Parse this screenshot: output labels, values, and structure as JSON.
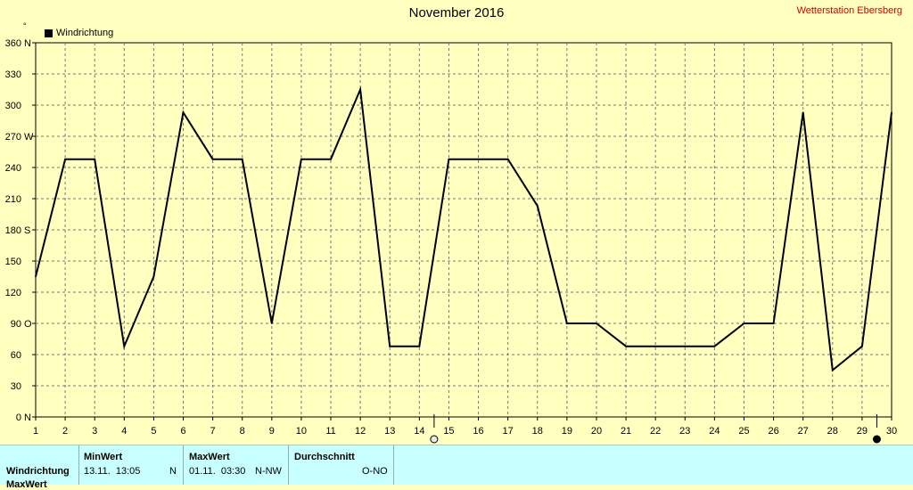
{
  "header": {
    "title": "November 2016",
    "station": "Wetterstation Ebersberg",
    "unit_mark": "°"
  },
  "legend": {
    "label": "Windrichtung"
  },
  "chart_data": {
    "type": "line",
    "title": "November 2016",
    "x_ticks": [
      "1",
      "2",
      "3",
      "4",
      "5",
      "6",
      "7",
      "8",
      "9",
      "10",
      "11",
      "12",
      "13",
      "14",
      "15",
      "16",
      "17",
      "18",
      "19",
      "20",
      "21",
      "22",
      "23",
      "24",
      "25",
      "26",
      "27",
      "28",
      "29",
      "30"
    ],
    "xlim": [
      1,
      30
    ],
    "ylim": [
      0,
      360
    ],
    "y_ticks": [
      {
        "value": 0,
        "label": "0",
        "dir": "N"
      },
      {
        "value": 30,
        "label": "30",
        "dir": ""
      },
      {
        "value": 60,
        "label": "60",
        "dir": ""
      },
      {
        "value": 90,
        "label": "90",
        "dir": "O"
      },
      {
        "value": 120,
        "label": "120",
        "dir": ""
      },
      {
        "value": 150,
        "label": "150",
        "dir": ""
      },
      {
        "value": 180,
        "label": "180",
        "dir": "S"
      },
      {
        "value": 210,
        "label": "210",
        "dir": ""
      },
      {
        "value": 240,
        "label": "240",
        "dir": ""
      },
      {
        "value": 270,
        "label": "270",
        "dir": "W"
      },
      {
        "value": 300,
        "label": "300",
        "dir": ""
      },
      {
        "value": 330,
        "label": "330",
        "dir": ""
      },
      {
        "value": 360,
        "label": "360",
        "dir": "N"
      }
    ],
    "grid": true,
    "legend_position": "top-left",
    "series": [
      {
        "name": "Windrichtung",
        "color": "#000000",
        "x": [
          1,
          2,
          3,
          4,
          5,
          6,
          7,
          8,
          9,
          10,
          11,
          12,
          13,
          14,
          15,
          16,
          17,
          18,
          19,
          20,
          21,
          22,
          23,
          24,
          25,
          26,
          27,
          28,
          29,
          30
        ],
        "values": [
          135,
          248,
          248,
          68,
          135,
          293,
          248,
          248,
          90,
          248,
          248,
          315,
          68,
          68,
          248,
          248,
          248,
          203,
          90,
          90,
          68,
          68,
          68,
          68,
          90,
          90,
          293,
          45,
          68,
          293
        ]
      }
    ],
    "markers": [
      {
        "x": 14.5,
        "icon": "full-moon-icon"
      },
      {
        "x": 29.5,
        "icon": "new-moon-icon"
      }
    ]
  },
  "table": {
    "row_label": "Windrichtung",
    "row_label_2": "MaxWert",
    "columns": [
      {
        "header": "MinWert",
        "value": "13.11.  13:05",
        "dir": "N"
      },
      {
        "header": "MaxWert",
        "value": "01.11.  03:30",
        "dir": "N-NW"
      },
      {
        "header": "Durchschnitt",
        "value": "",
        "dir": "O-NO"
      }
    ]
  }
}
